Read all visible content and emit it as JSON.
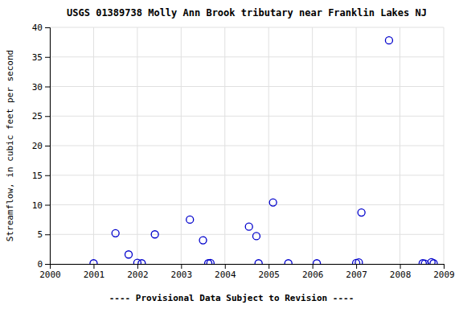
{
  "chart_data": {
    "type": "scatter",
    "title": "USGS 01389738 Molly Ann Brook tributary near Franklin Lakes NJ",
    "ylabel": "Streamflow, in cubic feet per second",
    "footnote": "---- Provisional Data Subject to Revision ----",
    "x": [
      2001.0,
      2001.5,
      2001.8,
      2002.0,
      2002.1,
      2002.4,
      2003.2,
      2003.5,
      2003.62,
      2003.67,
      2004.55,
      2004.72,
      2004.77,
      2005.1,
      2005.45,
      2006.1,
      2007.0,
      2007.06,
      2007.12,
      2007.75,
      2008.52,
      2008.57,
      2008.72,
      2008.77
    ],
    "values": [
      0.1,
      5.2,
      1.6,
      0.2,
      0.1,
      5.0,
      7.5,
      4.0,
      0.1,
      0.15,
      6.3,
      4.7,
      0.1,
      10.4,
      0.1,
      0.1,
      0.15,
      0.25,
      8.7,
      37.8,
      0.1,
      0.05,
      0.3,
      0.1
    ],
    "xlim": [
      2000,
      2009
    ],
    "ylim": [
      0,
      40
    ],
    "xticks": [
      2000,
      2001,
      2002,
      2003,
      2004,
      2005,
      2006,
      2007,
      2008,
      2009
    ],
    "yticks": [
      0,
      5,
      10,
      15,
      20,
      25,
      30,
      35,
      40
    ],
    "color": "#0000cc",
    "marker": "open-circle",
    "grid": true
  }
}
